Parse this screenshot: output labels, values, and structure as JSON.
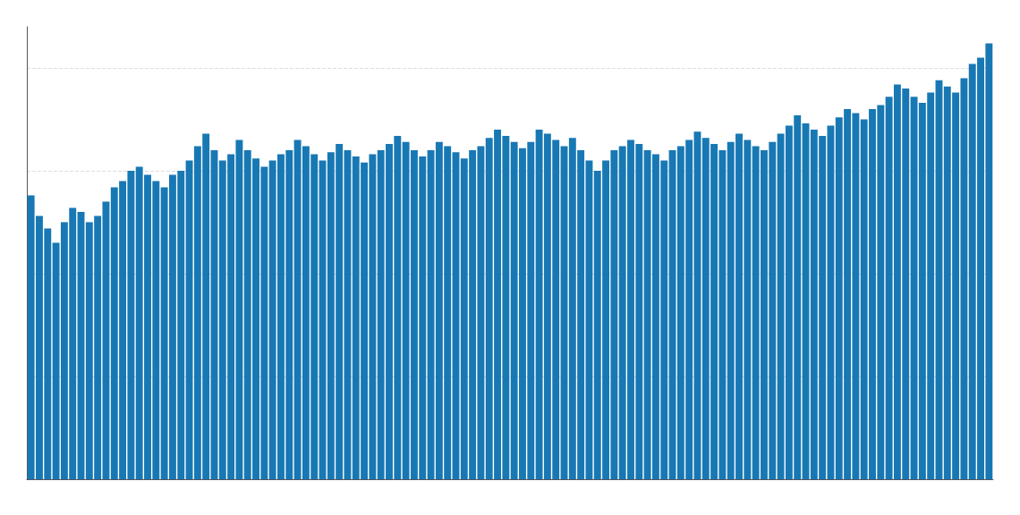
{
  "chart_data": {
    "type": "bar",
    "values": [
      13800,
      12800,
      12200,
      11500,
      12500,
      13200,
      13000,
      12500,
      12800,
      13500,
      14200,
      14500,
      15000,
      15200,
      14800,
      14500,
      14200,
      14800,
      15000,
      15500,
      16200,
      16800,
      16000,
      15500,
      15800,
      16500,
      16000,
      15600,
      15200,
      15500,
      15800,
      16000,
      16500,
      16200,
      15800,
      15500,
      15900,
      16300,
      16000,
      15700,
      15400,
      15800,
      16000,
      16300,
      16700,
      16400,
      16000,
      15700,
      16000,
      16400,
      16200,
      15900,
      15600,
      16000,
      16200,
      16600,
      17000,
      16700,
      16400,
      16100,
      16400,
      17000,
      16800,
      16500,
      16200,
      16600,
      16000,
      15500,
      15000,
      15500,
      16000,
      16200,
      16500,
      16300,
      16000,
      15800,
      15500,
      16000,
      16200,
      16500,
      16900,
      16600,
      16300,
      16000,
      16400,
      16800,
      16500,
      16200,
      16000,
      16400,
      16800,
      17200,
      17700,
      17300,
      17000,
      16700,
      17200,
      17600,
      18000,
      17800,
      17500,
      18000,
      18200,
      18600,
      19200,
      19000,
      18600,
      18300,
      18800,
      19400,
      19100,
      18800,
      19500,
      20200,
      20500,
      21200
    ],
    "color": "#1878b4",
    "ylim": [
      0,
      22000
    ],
    "yticks": [
      5000,
      10000,
      15000,
      20000
    ],
    "grid": true,
    "tick_labels": false
  }
}
